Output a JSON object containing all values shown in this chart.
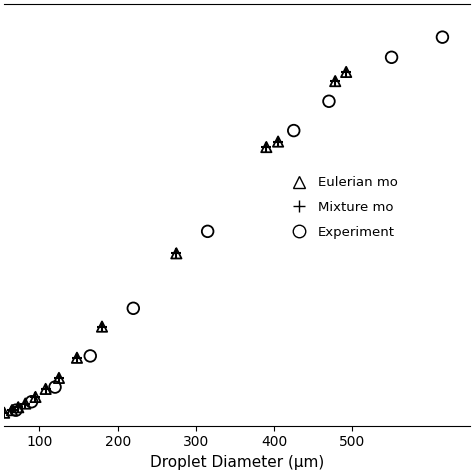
{
  "eulerian_x": [
    55,
    65,
    73,
    82,
    95,
    108,
    125,
    148,
    180,
    275,
    390,
    405,
    478,
    492
  ],
  "eulerian_y": [
    0.005,
    0.012,
    0.02,
    0.03,
    0.048,
    0.07,
    0.1,
    0.155,
    0.24,
    0.44,
    0.73,
    0.745,
    0.91,
    0.935
  ],
  "mixture_x": [
    55,
    65,
    73,
    82,
    95,
    108,
    125,
    148,
    180,
    275,
    390,
    405,
    478,
    492
  ],
  "mixture_y": [
    0.005,
    0.012,
    0.02,
    0.03,
    0.048,
    0.07,
    0.1,
    0.155,
    0.24,
    0.44,
    0.73,
    0.745,
    0.91,
    0.935
  ],
  "experiment_x": [
    70,
    90,
    120,
    165,
    220,
    315,
    425,
    470,
    550,
    615
  ],
  "experiment_y": [
    0.012,
    0.035,
    0.075,
    0.16,
    0.29,
    0.5,
    0.775,
    0.855,
    0.975,
    1.03
  ],
  "xlabel": "Droplet Diameter (μm)",
  "xlim": [
    55,
    650
  ],
  "ylim": [
    -0.03,
    1.12
  ],
  "xticks": [
    100,
    200,
    300,
    400,
    500
  ],
  "legend_labels": [
    "Eulerian mo",
    "Mixture mo",
    "Experiment"
  ],
  "background_color": "#ffffff",
  "marker_color": "#000000",
  "triangle_size": 55,
  "cross_size": 55,
  "circle_size": 70
}
